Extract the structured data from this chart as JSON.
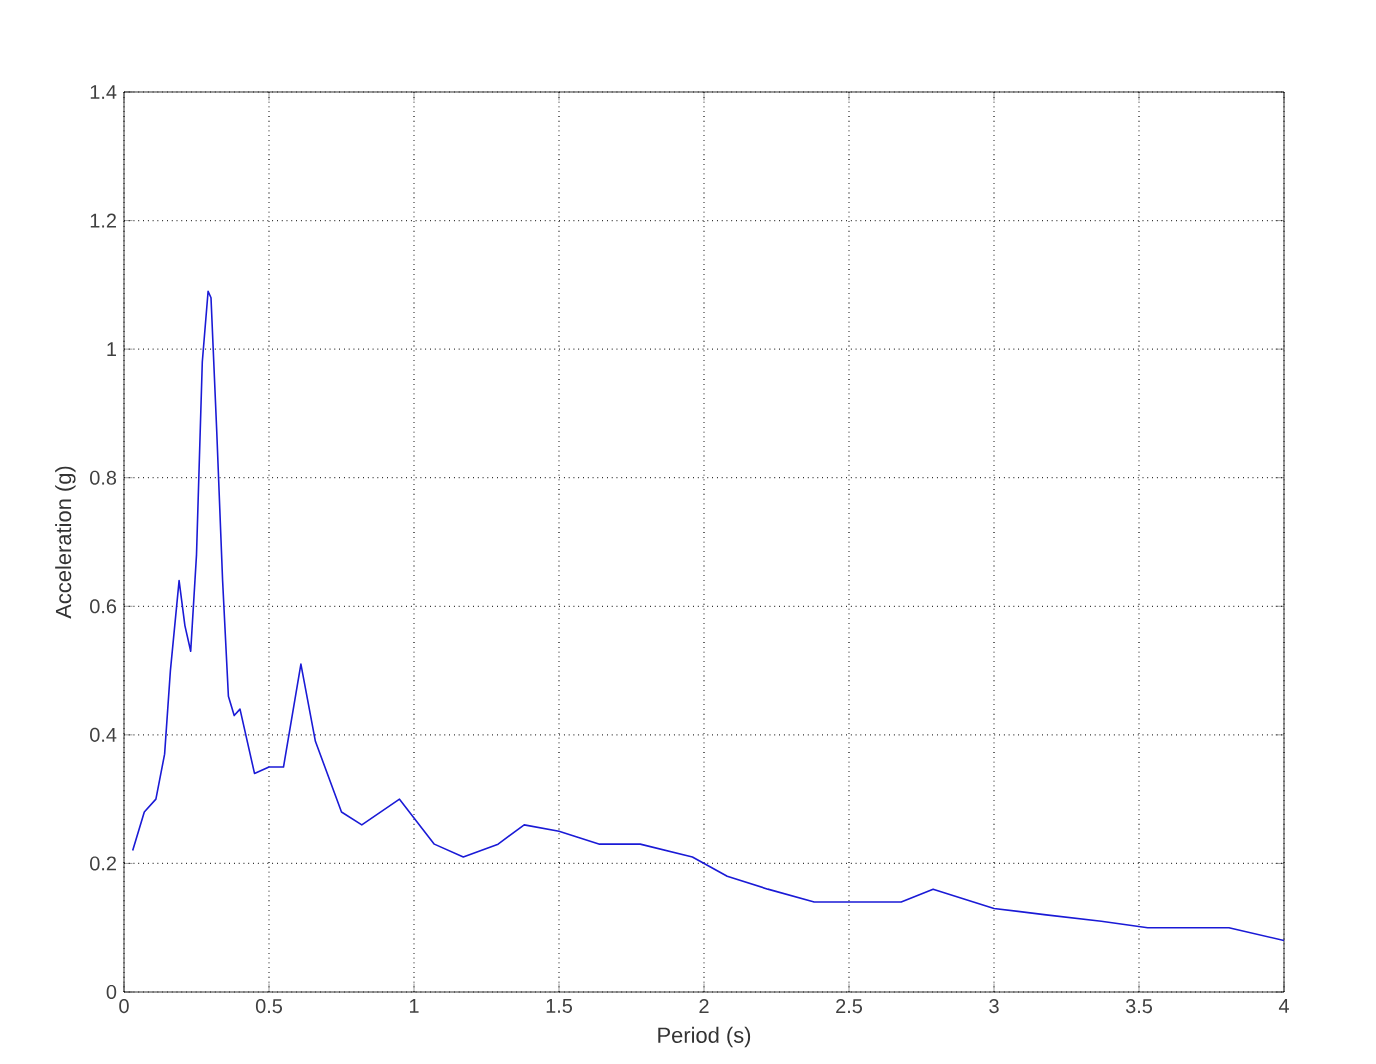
{
  "chart_data": {
    "type": "line",
    "xlabel": "Period (s)",
    "ylabel": "Acceleration (g)",
    "xlim": [
      0,
      4
    ],
    "ylim": [
      0,
      1.4
    ],
    "xticks": [
      0,
      0.5,
      1,
      1.5,
      2,
      2.5,
      3,
      3.5,
      4
    ],
    "yticks": [
      0,
      0.2,
      0.4,
      0.6,
      0.8,
      1,
      1.2,
      1.4
    ],
    "grid": true,
    "marker": "none",
    "line_style": "solid",
    "series": [
      {
        "color": "#1a1ad6",
        "x": [
          0.03,
          0.07,
          0.11,
          0.14,
          0.16,
          0.19,
          0.21,
          0.23,
          0.25,
          0.27,
          0.29,
          0.3,
          0.32,
          0.34,
          0.36,
          0.38,
          0.4,
          0.45,
          0.5,
          0.55,
          0.61,
          0.66,
          0.75,
          0.82,
          0.95,
          1.07,
          1.17,
          1.29,
          1.38,
          1.5,
          1.64,
          1.78,
          1.96,
          2.08,
          2.22,
          2.38,
          2.68,
          2.79,
          3.0,
          3.18,
          3.37,
          3.53,
          3.81,
          4.0
        ],
        "values": [
          0.22,
          0.28,
          0.3,
          0.37,
          0.5,
          0.64,
          0.57,
          0.53,
          0.68,
          0.98,
          1.09,
          1.08,
          0.87,
          0.64,
          0.46,
          0.43,
          0.44,
          0.34,
          0.35,
          0.35,
          0.51,
          0.39,
          0.28,
          0.26,
          0.3,
          0.23,
          0.21,
          0.23,
          0.26,
          0.25,
          0.23,
          0.23,
          0.21,
          0.18,
          0.16,
          0.14,
          0.14,
          0.16,
          0.13,
          0.12,
          0.11,
          0.1,
          0.1,
          0.08
        ]
      }
    ]
  }
}
